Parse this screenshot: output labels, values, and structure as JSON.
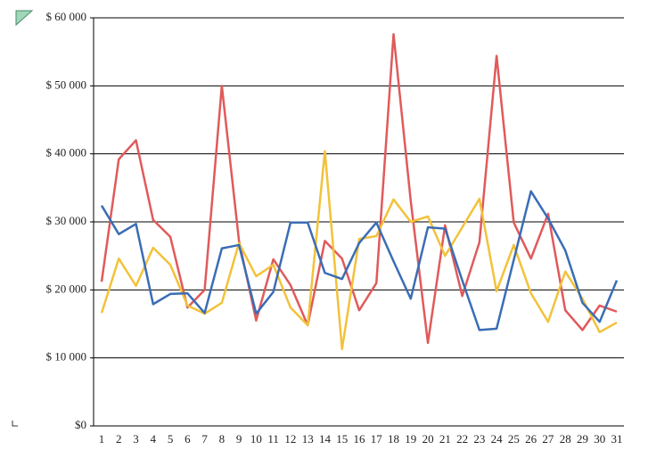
{
  "chart_data": {
    "type": "line",
    "categories": [
      "1",
      "2",
      "3",
      "4",
      "5",
      "6",
      "7",
      "8",
      "9",
      "10",
      "11",
      "12",
      "13",
      "14",
      "15",
      "16",
      "17",
      "18",
      "19",
      "20",
      "21",
      "22",
      "23",
      "24",
      "25",
      "26",
      "27",
      "28",
      "29",
      "30",
      "31"
    ],
    "series": [
      {
        "color": "#e05a5a",
        "values": [
          21200,
          39200,
          42000,
          30300,
          27800,
          17400,
          20000,
          50000,
          27200,
          15500,
          24500,
          20700,
          14800,
          27200,
          24600,
          17000,
          21000,
          57600,
          33100,
          12200,
          29500,
          19100,
          27000,
          54400,
          29900,
          24600,
          31200,
          17000,
          14100,
          17700,
          16800
        ]
      },
      {
        "color": "#f2c23a",
        "values": [
          16600,
          24600,
          20600,
          26200,
          23700,
          17700,
          16500,
          18100,
          26900,
          22000,
          23700,
          17400,
          14800,
          40400,
          11300,
          27500,
          27900,
          33300,
          30000,
          30800,
          25000,
          29200,
          33400,
          19800,
          26600,
          19500,
          15300,
          22700,
          18700,
          13800,
          15200
        ]
      },
      {
        "color": "#3a6db5",
        "values": [
          32400,
          28200,
          29700,
          17900,
          19400,
          19500,
          16600,
          26100,
          26600,
          16500,
          19700,
          29900,
          29900,
          22500,
          21600,
          26900,
          29900,
          24200,
          18700,
          29200,
          29000,
          21400,
          14100,
          14300,
          24400,
          34500,
          30500,
          25800,
          18100,
          15300,
          21400
        ]
      }
    ],
    "ylim": [
      0,
      60000
    ],
    "yticks": [
      {
        "value": 0,
        "label": "$0"
      },
      {
        "value": 10000,
        "label": "$ 10 000"
      },
      {
        "value": 20000,
        "label": "$ 20 000"
      },
      {
        "value": 30000,
        "label": "$ 30 000"
      },
      {
        "value": 40000,
        "label": "$ 40 000"
      },
      {
        "value": 50000,
        "label": "$ 50 000"
      },
      {
        "value": 60000,
        "label": "$ 60 000"
      }
    ],
    "grid": true
  }
}
